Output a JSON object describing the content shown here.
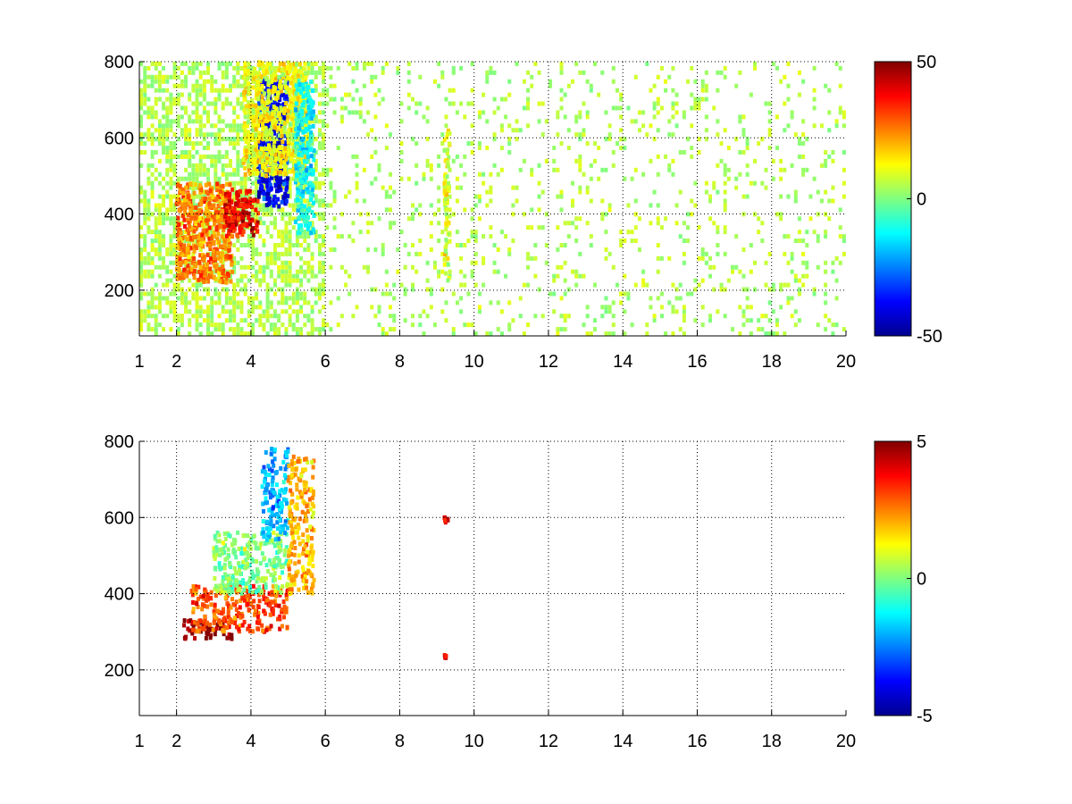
{
  "chart_data": [
    {
      "type": "heatmap",
      "title": "",
      "xlabel": "",
      "ylabel": "",
      "xlim": [
        1,
        20
      ],
      "ylim": [
        80,
        800
      ],
      "xticks": [
        1,
        2,
        4,
        6,
        8,
        10,
        12,
        14,
        16,
        18,
        20
      ],
      "xtick_labels": [
        "1",
        "2",
        "4",
        "6",
        "8",
        "10",
        "12",
        "14",
        "16",
        "18",
        "20"
      ],
      "yticks": [
        200,
        400,
        600,
        800
      ],
      "ytick_labels": [
        "200",
        "400",
        "600",
        "800"
      ],
      "grid": true,
      "colormap": "jet",
      "clim": [
        -50,
        50
      ],
      "colorbar_ticks": [
        50,
        0,
        -50
      ],
      "colorbar_labels": [
        "50",
        "0",
        "-50"
      ],
      "features": [
        {
          "x": [
            2.0,
            3.5
          ],
          "y": [
            220,
            480
          ],
          "value": 25
        },
        {
          "x": [
            3.3,
            4.2
          ],
          "y": [
            340,
            460
          ],
          "value": 38
        },
        {
          "x": [
            4.2,
            5.0
          ],
          "y": [
            420,
            760
          ],
          "value": -38
        },
        {
          "x": [
            3.8,
            5.5
          ],
          "y": [
            500,
            800
          ],
          "value": 12
        },
        {
          "x": [
            5.2,
            5.7
          ],
          "y": [
            350,
            750
          ],
          "value": -12
        },
        {
          "x": [
            9.2,
            9.35
          ],
          "y": [
            220,
            620
          ],
          "value": 10
        }
      ],
      "background": "sparse scattered values near 0 to +10 across all x"
    },
    {
      "type": "heatmap",
      "title": "",
      "xlabel": "",
      "ylabel": "",
      "xlim": [
        1,
        20
      ],
      "ylim": [
        80,
        800
      ],
      "xticks": [
        1,
        2,
        4,
        6,
        8,
        10,
        12,
        14,
        16,
        18,
        20
      ],
      "xtick_labels": [
        "1",
        "2",
        "4",
        "6",
        "8",
        "10",
        "12",
        "14",
        "16",
        "18",
        "20"
      ],
      "yticks": [
        200,
        400,
        600,
        800
      ],
      "ytick_labels": [
        "200",
        "400",
        "600",
        "800"
      ],
      "grid": true,
      "colormap": "jet",
      "clim": [
        -5,
        5
      ],
      "colorbar_ticks": [
        5,
        0,
        -5
      ],
      "colorbar_labels": [
        "5",
        "0",
        "-5"
      ],
      "features": [
        {
          "x": [
            2.2,
            3.5
          ],
          "y": [
            280,
            330
          ],
          "value": 5
        },
        {
          "x": [
            2.4,
            5.0
          ],
          "y": [
            300,
            420
          ],
          "value": 3
        },
        {
          "x": [
            3.0,
            5.0
          ],
          "y": [
            400,
            560
          ],
          "value": 0
        },
        {
          "x": [
            4.3,
            5.0
          ],
          "y": [
            540,
            780
          ],
          "value": -2
        },
        {
          "x": [
            5.0,
            5.7
          ],
          "y": [
            400,
            760
          ],
          "value": 2
        },
        {
          "x": [
            9.2,
            9.3
          ],
          "y": [
            580,
            600
          ],
          "value": 4
        },
        {
          "x": [
            9.2,
            9.3
          ],
          "y": [
            230,
            240
          ],
          "value": 4
        }
      ],
      "background": "blank outside the band"
    }
  ]
}
